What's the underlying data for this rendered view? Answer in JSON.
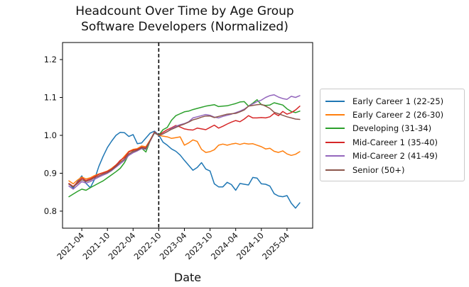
{
  "figure": {
    "title": "Headcount Over Time by Age Group",
    "subtitle": "Software Developers (Normalized)"
  },
  "chart_data": {
    "type": "line",
    "title": "Headcount Over Time by Age Group",
    "subtitle": "Software Developers (Normalized)",
    "xlabel": "Date",
    "ylabel": "",
    "grid": false,
    "legend_position": "right-outside",
    "ylim": [
      0.755,
      1.245
    ],
    "xlim_index": [
      -1.5,
      57.0
    ],
    "yticks": [
      0.8,
      0.9,
      1.0,
      1.1,
      1.2
    ],
    "x_tick_labels": [
      "2021-04",
      "2021-10",
      "2022-04",
      "2022-10",
      "2023-04",
      "2023-10",
      "2024-04",
      "2024-10",
      "2025-04"
    ],
    "vline": {
      "x": "2022-10",
      "style": "dashed",
      "color": "#000000"
    },
    "x": [
      "2021-01",
      "2021-02",
      "2021-03",
      "2021-04",
      "2021-05",
      "2021-06",
      "2021-07",
      "2021-08",
      "2021-09",
      "2021-10",
      "2021-11",
      "2021-12",
      "2022-01",
      "2022-02",
      "2022-03",
      "2022-04",
      "2022-05",
      "2022-06",
      "2022-07",
      "2022-08",
      "2022-09",
      "2022-10",
      "2022-11",
      "2022-12",
      "2023-01",
      "2023-02",
      "2023-03",
      "2023-04",
      "2023-05",
      "2023-06",
      "2023-07",
      "2023-08",
      "2023-09",
      "2023-10",
      "2023-11",
      "2023-12",
      "2024-01",
      "2024-02",
      "2024-03",
      "2024-04",
      "2024-05",
      "2024-06",
      "2024-07",
      "2024-08",
      "2024-09",
      "2024-10",
      "2024-11",
      "2024-12",
      "2025-01",
      "2025-02",
      "2025-03",
      "2025-04",
      "2025-05",
      "2025-06",
      "2025-07"
    ],
    "series": [
      {
        "id": "early-career-1",
        "name": "Early Career 1 (22-25)",
        "color": "#1f77b4",
        "values": [
          0.872,
          0.861,
          0.878,
          0.893,
          0.873,
          0.862,
          0.884,
          0.918,
          0.945,
          0.968,
          0.985,
          1.0,
          1.008,
          1.007,
          0.997,
          1.002,
          0.978,
          0.98,
          0.993,
          1.006,
          1.011,
          1.001,
          0.982,
          0.974,
          0.964,
          0.958,
          0.948,
          0.934,
          0.921,
          0.908,
          0.915,
          0.928,
          0.911,
          0.906,
          0.872,
          0.864,
          0.864,
          0.876,
          0.87,
          0.855,
          0.873,
          0.871,
          0.869,
          0.889,
          0.887,
          0.872,
          0.871,
          0.866,
          0.846,
          0.84,
          0.838,
          0.841,
          0.821,
          0.808,
          0.822
        ]
      },
      {
        "id": "early-career-2",
        "name": "Early Career 2 (26-30)",
        "color": "#ff7f0e",
        "values": [
          0.88,
          0.872,
          0.882,
          0.89,
          0.885,
          0.888,
          0.894,
          0.898,
          0.902,
          0.906,
          0.913,
          0.922,
          0.932,
          0.945,
          0.958,
          0.963,
          0.965,
          0.972,
          0.97,
          0.988,
          1.008,
          1.0,
          0.998,
          0.996,
          0.992,
          0.994,
          0.996,
          0.974,
          0.98,
          0.988,
          0.984,
          0.963,
          0.955,
          0.957,
          0.962,
          0.974,
          0.977,
          0.974,
          0.977,
          0.979,
          0.976,
          0.979,
          0.977,
          0.978,
          0.974,
          0.97,
          0.964,
          0.966,
          0.958,
          0.955,
          0.959,
          0.951,
          0.947,
          0.95,
          0.957
        ]
      },
      {
        "id": "developing",
        "name": "Developing (31-34)",
        "color": "#2ca02c",
        "values": [
          0.838,
          0.845,
          0.852,
          0.858,
          0.855,
          0.862,
          0.868,
          0.874,
          0.88,
          0.888,
          0.896,
          0.904,
          0.913,
          0.928,
          0.95,
          0.958,
          0.96,
          0.966,
          0.956,
          0.986,
          1.006,
          1.0,
          1.015,
          1.021,
          1.04,
          1.052,
          1.057,
          1.062,
          1.064,
          1.068,
          1.071,
          1.074,
          1.077,
          1.079,
          1.081,
          1.076,
          1.077,
          1.078,
          1.081,
          1.084,
          1.088,
          1.089,
          1.077,
          1.085,
          1.094,
          1.081,
          1.079,
          1.08,
          1.086,
          1.083,
          1.08,
          1.07,
          1.063,
          1.06,
          1.064
        ]
      },
      {
        "id": "mid-career-1",
        "name": "Mid-Career 1 (35-40)",
        "color": "#d62728",
        "values": [
          0.873,
          0.865,
          0.876,
          0.887,
          0.881,
          0.885,
          0.891,
          0.897,
          0.901,
          0.905,
          0.911,
          0.921,
          0.934,
          0.941,
          0.956,
          0.961,
          0.963,
          0.969,
          0.967,
          0.987,
          1.009,
          1.0,
          1.008,
          1.015,
          1.02,
          1.026,
          1.022,
          1.017,
          1.015,
          1.014,
          1.019,
          1.017,
          1.015,
          1.021,
          1.027,
          1.019,
          1.024,
          1.03,
          1.035,
          1.039,
          1.036,
          1.043,
          1.052,
          1.046,
          1.046,
          1.047,
          1.046,
          1.049,
          1.058,
          1.052,
          1.063,
          1.056,
          1.06,
          1.067,
          1.077
        ]
      },
      {
        "id": "mid-career-2",
        "name": "Mid-Career 2 (41-49)",
        "color": "#9467bd",
        "values": [
          0.866,
          0.858,
          0.868,
          0.878,
          0.874,
          0.878,
          0.884,
          0.89,
          0.895,
          0.9,
          0.907,
          0.916,
          0.925,
          0.934,
          0.947,
          0.954,
          0.959,
          0.965,
          0.963,
          0.985,
          1.007,
          1.0,
          1.004,
          1.01,
          1.018,
          1.024,
          1.028,
          1.031,
          1.036,
          1.046,
          1.049,
          1.052,
          1.055,
          1.053,
          1.048,
          1.046,
          1.05,
          1.053,
          1.056,
          1.06,
          1.064,
          1.069,
          1.077,
          1.083,
          1.089,
          1.093,
          1.1,
          1.105,
          1.107,
          1.101,
          1.097,
          1.095,
          1.103,
          1.1,
          1.105
        ]
      },
      {
        "id": "senior",
        "name": "Senior (50+)",
        "color": "#8c564b",
        "values": [
          0.871,
          0.864,
          0.873,
          0.883,
          0.878,
          0.882,
          0.888,
          0.893,
          0.898,
          0.902,
          0.909,
          0.918,
          0.929,
          0.937,
          0.951,
          0.957,
          0.961,
          0.967,
          0.965,
          0.986,
          1.008,
          1.0,
          1.004,
          1.01,
          1.016,
          1.021,
          1.026,
          1.03,
          1.035,
          1.041,
          1.044,
          1.048,
          1.051,
          1.051,
          1.047,
          1.05,
          1.053,
          1.056,
          1.057,
          1.058,
          1.062,
          1.067,
          1.077,
          1.079,
          1.081,
          1.082,
          1.077,
          1.071,
          1.061,
          1.057,
          1.053,
          1.049,
          1.046,
          1.043,
          1.042
        ]
      }
    ]
  }
}
